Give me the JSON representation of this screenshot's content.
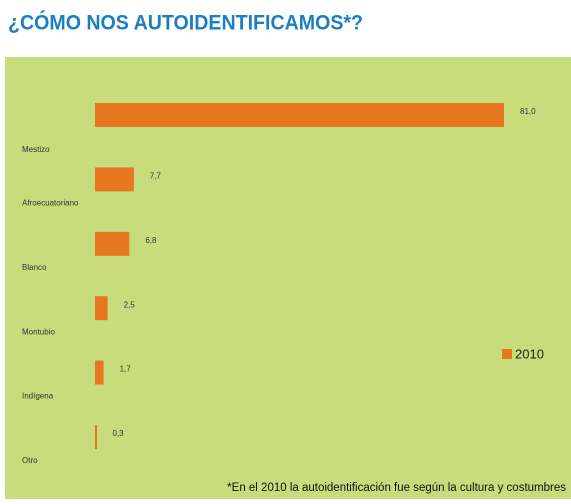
{
  "chart_data": {
    "type": "bar",
    "orientation": "horizontal",
    "title": "¿CÓMO NOS AUTOIDENTIFICAMOS*?",
    "categories": [
      "Mestizo",
      "Afroecuatoriano",
      "Blanco",
      "Montubio",
      "Indígena",
      "Otro"
    ],
    "series": [
      {
        "name": "2010",
        "color": "#e87722",
        "values": [
          81.0,
          7.7,
          6.8,
          2.5,
          1.7,
          0.3
        ],
        "value_labels": [
          "81,0",
          "7,7",
          "6,8",
          "2,5",
          "1,7",
          "0,3"
        ]
      }
    ],
    "legend": "right",
    "note": "*En el 2010 la autoidentificación fue según la cultura y costumbres"
  }
}
